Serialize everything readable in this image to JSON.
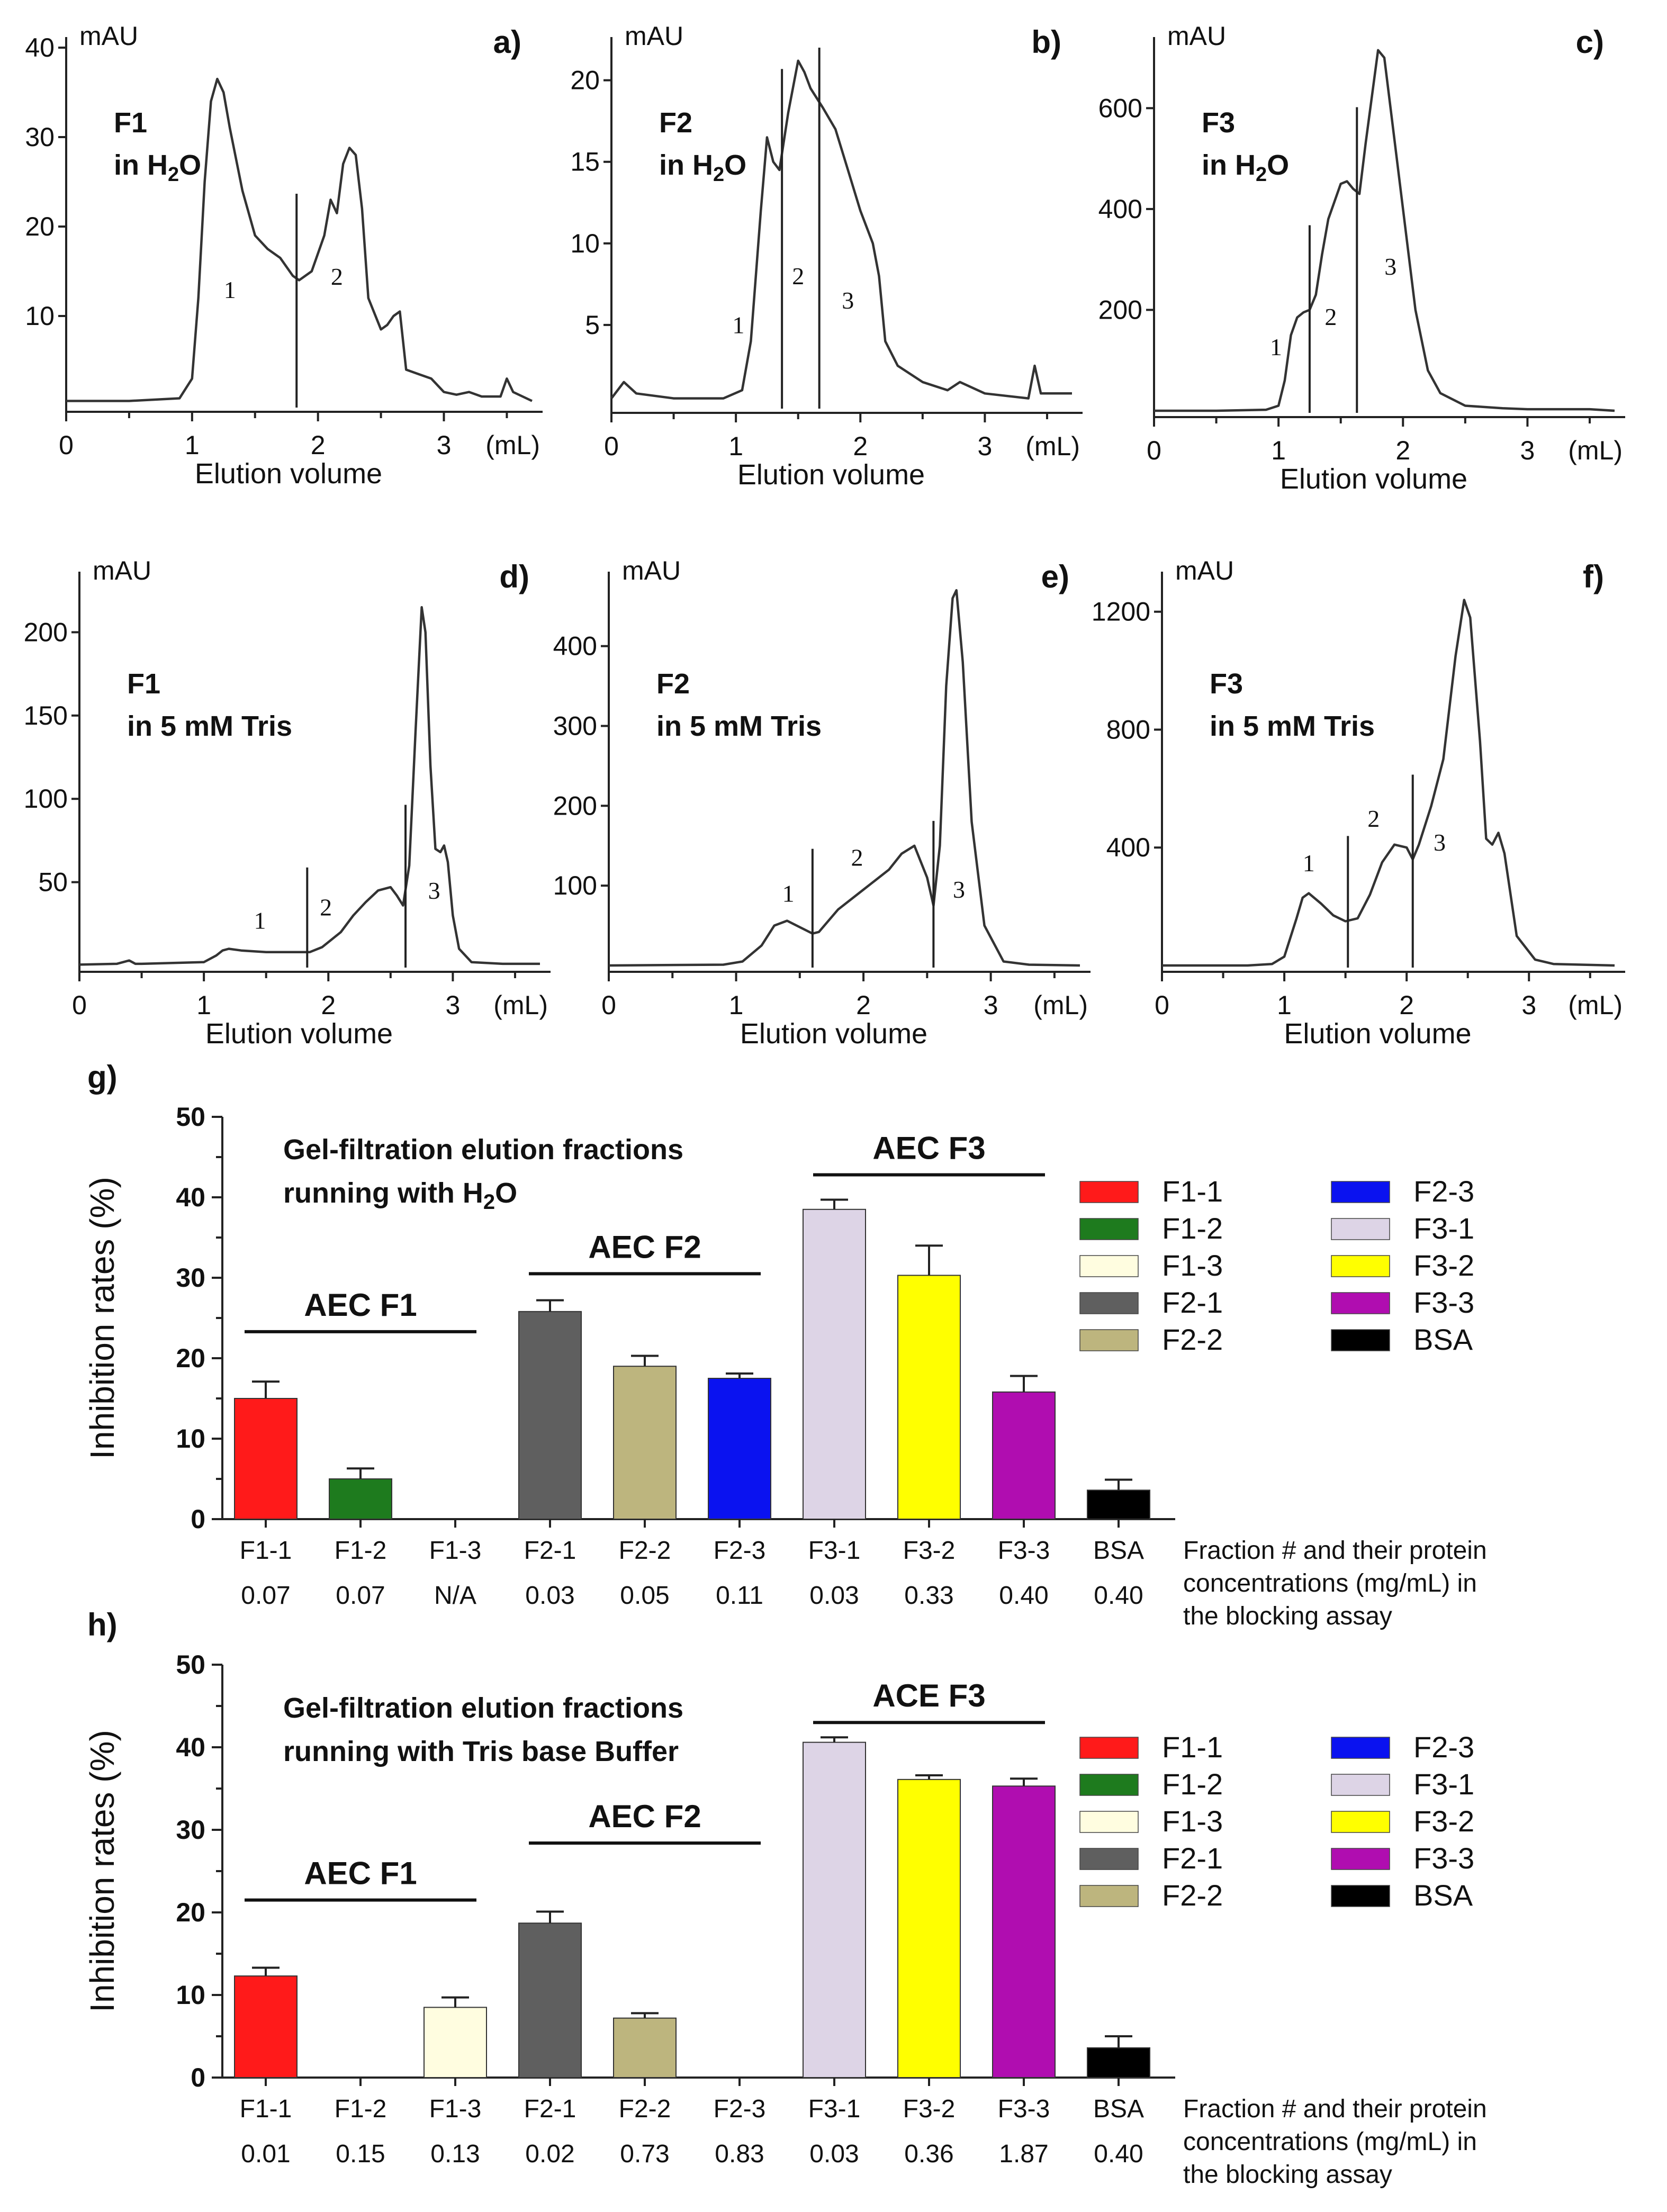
{
  "chart_data": [
    {
      "panel": "a)",
      "type": "line",
      "sample": "F1",
      "solvent": "in H2O",
      "y_unit": "mAU",
      "x_unit": "(mL)",
      "xlabel": "Elution volume",
      "xlim": [
        0,
        3.7
      ],
      "ylim": [
        0,
        40
      ],
      "x_ticks": [
        0,
        1,
        2,
        3
      ],
      "y_ticks": [
        10,
        20,
        30,
        40
      ],
      "dividers": [
        1.83
      ],
      "fractions": [
        {
          "label": "1",
          "x": 1.3,
          "y": 12
        },
        {
          "label": "2",
          "x": 2.15,
          "y": 13.5
        }
      ],
      "x": [
        0,
        0.5,
        0.9,
        1.0,
        1.05,
        1.1,
        1.15,
        1.2,
        1.25,
        1.3,
        1.4,
        1.5,
        1.6,
        1.7,
        1.8,
        1.85,
        1.95,
        2.05,
        2.1,
        2.15,
        2.2,
        2.25,
        2.3,
        2.35,
        2.4,
        2.5,
        2.55,
        2.6,
        2.65,
        2.7,
        2.8,
        2.9,
        3.0,
        3.1,
        3.2,
        3.3,
        3.45,
        3.5,
        3.55,
        3.7
      ],
      "y": [
        0.5,
        0.5,
        0.8,
        3,
        12,
        25,
        34,
        36.5,
        35,
        31,
        24,
        19,
        17.5,
        16.5,
        14.5,
        14,
        15,
        19,
        23,
        21.5,
        27,
        28.8,
        28,
        22,
        12,
        8.5,
        9,
        10,
        10.5,
        4,
        3.5,
        3,
        1.5,
        1.2,
        1.5,
        1,
        1,
        3,
        1.5,
        0.5
      ]
    },
    {
      "panel": "b)",
      "type": "line",
      "sample": "F2",
      "solvent": "in H2O",
      "y_unit": "mAU",
      "x_unit": "(mL)",
      "xlabel": "Elution volume",
      "xlim": [
        0,
        3.7
      ],
      "ylim": [
        0,
        22
      ],
      "x_ticks": [
        0,
        1,
        2,
        3
      ],
      "y_ticks": [
        5,
        10,
        15,
        20
      ],
      "dividers": [
        1.37,
        1.67
      ],
      "fractions": [
        {
          "label": "1",
          "x": 1.02,
          "y": 4.5
        },
        {
          "label": "2",
          "x": 1.5,
          "y": 7.5
        },
        {
          "label": "3",
          "x": 1.9,
          "y": 6
        }
      ],
      "x": [
        0,
        0.1,
        0.2,
        0.5,
        0.9,
        1.05,
        1.12,
        1.2,
        1.25,
        1.3,
        1.35,
        1.42,
        1.5,
        1.55,
        1.6,
        1.7,
        1.8,
        1.9,
        2.0,
        2.1,
        2.15,
        2.2,
        2.3,
        2.5,
        2.7,
        2.8,
        3.0,
        3.35,
        3.4,
        3.45,
        3.7
      ],
      "y": [
        0.5,
        1.5,
        0.8,
        0.5,
        0.5,
        1,
        4,
        12,
        16.5,
        15,
        14.5,
        18,
        21.2,
        20.5,
        19.5,
        18.3,
        17,
        14.5,
        12,
        10,
        8,
        4,
        2.5,
        1.5,
        1,
        1.5,
        0.8,
        0.5,
        2.5,
        0.8,
        0.8
      ]
    },
    {
      "panel": "c)",
      "type": "line",
      "sample": "F3",
      "solvent": "in H2O",
      "y_unit": "mAU",
      "x_unit": "(mL)",
      "xlabel": "Elution volume",
      "xlim": [
        0,
        3.7
      ],
      "ylim": [
        0,
        720
      ],
      "x_ticks": [
        0,
        1,
        2,
        3
      ],
      "y_ticks": [
        200,
        400,
        600
      ],
      "dividers": [
        1.25,
        1.63
      ],
      "fractions": [
        {
          "label": "1",
          "x": 0.98,
          "y": 110
        },
        {
          "label": "2",
          "x": 1.42,
          "y": 170
        },
        {
          "label": "3",
          "x": 1.9,
          "y": 270
        }
      ],
      "x": [
        0,
        0.5,
        0.9,
        1.0,
        1.05,
        1.1,
        1.15,
        1.2,
        1.25,
        1.3,
        1.35,
        1.4,
        1.5,
        1.55,
        1.6,
        1.65,
        1.7,
        1.8,
        1.85,
        1.9,
        2.0,
        2.1,
        2.2,
        2.3,
        2.5,
        2.8,
        3.0,
        3.5,
        3.7
      ],
      "y": [
        0,
        0,
        2,
        10,
        60,
        150,
        185,
        195,
        200,
        230,
        310,
        380,
        450,
        455,
        440,
        430,
        530,
        715,
        700,
        600,
        400,
        200,
        80,
        35,
        10,
        5,
        3,
        3,
        0
      ]
    },
    {
      "panel": "d)",
      "type": "line",
      "sample": "F1",
      "solvent": "in 5 mM Tris",
      "y_unit": "mAU",
      "x_unit": "(mL)",
      "xlabel": "Elution volume",
      "xlim": [
        0,
        3.7
      ],
      "ylim": [
        0,
        230
      ],
      "x_ticks": [
        0,
        1,
        2,
        3
      ],
      "y_ticks": [
        50,
        100,
        150,
        200
      ],
      "dividers": [
        1.83,
        2.62
      ],
      "fractions": [
        {
          "label": "1",
          "x": 1.45,
          "y": 22
        },
        {
          "label": "2",
          "x": 1.98,
          "y": 30
        },
        {
          "label": "3",
          "x": 2.85,
          "y": 40
        }
      ],
      "x": [
        0,
        0.3,
        0.4,
        0.45,
        0.5,
        1.0,
        1.1,
        1.15,
        1.2,
        1.3,
        1.5,
        1.7,
        1.85,
        1.95,
        2.1,
        2.2,
        2.3,
        2.4,
        2.5,
        2.55,
        2.6,
        2.65,
        2.7,
        2.75,
        2.78,
        2.82,
        2.86,
        2.9,
        2.93,
        2.96,
        3.0,
        3.05,
        3.15,
        3.4,
        3.7
      ],
      "y": [
        0.5,
        1,
        3,
        1,
        1,
        2,
        6,
        9,
        10,
        9,
        8,
        8,
        8,
        11,
        20,
        30,
        38,
        45,
        47,
        42,
        36,
        60,
        140,
        215,
        200,
        120,
        70,
        68,
        72,
        62,
        30,
        10,
        2,
        1,
        1
      ]
    },
    {
      "panel": "e)",
      "type": "line",
      "sample": "F2",
      "solvent": "in 5 mM Tris",
      "y_unit": "mAU",
      "x_unit": "(mL)",
      "xlabel": "Elution volume",
      "xlim": [
        0,
        3.7
      ],
      "ylim": [
        0,
        480
      ],
      "x_ticks": [
        0,
        1,
        2,
        3
      ],
      "y_ticks": [
        100,
        200,
        300,
        400
      ],
      "dividers": [
        1.6,
        2.55
      ],
      "fractions": [
        {
          "label": "1",
          "x": 1.41,
          "y": 80
        },
        {
          "label": "2",
          "x": 1.95,
          "y": 125
        },
        {
          "label": "3",
          "x": 2.75,
          "y": 85
        }
      ],
      "x": [
        0,
        0.9,
        1.05,
        1.2,
        1.3,
        1.4,
        1.5,
        1.6,
        1.65,
        1.8,
        2.0,
        2.2,
        2.3,
        2.4,
        2.5,
        2.55,
        2.6,
        2.65,
        2.7,
        2.73,
        2.78,
        2.85,
        2.95,
        3.1,
        3.3,
        3.7
      ],
      "y": [
        0,
        1,
        5,
        25,
        50,
        56,
        48,
        40,
        42,
        70,
        95,
        120,
        140,
        150,
        110,
        75,
        150,
        350,
        460,
        470,
        380,
        180,
        50,
        5,
        1,
        0
      ]
    },
    {
      "panel": "f)",
      "type": "line",
      "sample": "F3",
      "solvent": "in 5 mM Tris",
      "y_unit": "mAU",
      "x_unit": "(mL)",
      "xlabel": "Elution volume",
      "xlim": [
        0,
        3.7
      ],
      "ylim": [
        0,
        1300
      ],
      "x_ticks": [
        0,
        1,
        2,
        3
      ],
      "y_ticks": [
        400,
        800,
        1200
      ],
      "dividers": [
        1.52,
        2.05
      ],
      "fractions": [
        {
          "label": "1",
          "x": 1.2,
          "y": 320
        },
        {
          "label": "2",
          "x": 1.73,
          "y": 470
        },
        {
          "label": "3",
          "x": 2.27,
          "y": 390
        }
      ],
      "x": [
        0,
        0.7,
        0.9,
        1.0,
        1.1,
        1.15,
        1.2,
        1.3,
        1.4,
        1.5,
        1.6,
        1.7,
        1.8,
        1.9,
        2.0,
        2.05,
        2.1,
        2.2,
        2.3,
        2.4,
        2.47,
        2.52,
        2.6,
        2.65,
        2.7,
        2.75,
        2.8,
        2.9,
        3.05,
        3.2,
        3.7
      ],
      "y": [
        0,
        0,
        5,
        30,
        160,
        230,
        245,
        210,
        170,
        150,
        160,
        240,
        350,
        410,
        400,
        360,
        410,
        540,
        700,
        1050,
        1240,
        1180,
        760,
        430,
        410,
        450,
        380,
        100,
        20,
        5,
        0
      ]
    },
    {
      "panel": "g)",
      "type": "bar",
      "title": "Gel-filtration elution fractions running with H2O",
      "ylabel": "Inhibition rates (%)",
      "ylim": [
        0,
        50
      ],
      "y_ticks": [
        0,
        10,
        20,
        30,
        40,
        50
      ],
      "categories": [
        "F1-1",
        "F1-2",
        "F1-3",
        "F2-1",
        "F2-2",
        "F2-3",
        "F3-1",
        "F3-2",
        "F3-3",
        "BSA"
      ],
      "concentrations": [
        "0.07",
        "0.07",
        "N/A",
        "0.03",
        "0.05",
        "0.11",
        "0.03",
        "0.33",
        "0.40",
        "0.40"
      ],
      "values": [
        15.0,
        5.0,
        0,
        25.8,
        19.0,
        17.5,
        38.5,
        30.3,
        15.8,
        3.6
      ],
      "errors": [
        2.1,
        1.3,
        0,
        1.4,
        1.3,
        0.6,
        1.2,
        3.7,
        2.0,
        1.3
      ],
      "colors": [
        "#ff1a1a",
        "#1e7b1e",
        "#fffde0",
        "#5f5f5f",
        "#bdb57e",
        "#0a12f0",
        "#ddd4e6",
        "#ffff00",
        "#b00db0",
        "#000000"
      ],
      "groups": [
        {
          "label": "AEC F1",
          "from": 0,
          "to": 2,
          "y": 23.3
        },
        {
          "label": "AEC F2",
          "from": 3,
          "to": 5,
          "y": 30.5
        },
        {
          "label": "AEC F3",
          "from": 6,
          "to": 8,
          "y": 42.8
        }
      ],
      "note": [
        "Fraction # and their protein",
        "concentrations (mg/mL) in",
        "the blocking assay"
      ]
    },
    {
      "panel": "h)",
      "type": "bar",
      "title": "Gel-filtration elution fractions running with Tris base Buffer",
      "ylabel": "Inhibition rates (%)",
      "ylim": [
        0,
        50
      ],
      "y_ticks": [
        0,
        10,
        20,
        30,
        40,
        50
      ],
      "categories": [
        "F1-1",
        "F1-2",
        "F1-3",
        "F2-1",
        "F2-2",
        "F2-3",
        "F3-1",
        "F3-2",
        "F3-3",
        "BSA"
      ],
      "concentrations": [
        "0.01",
        "0.15",
        "0.13",
        "0.02",
        "0.73",
        "0.83",
        "0.03",
        "0.36",
        "1.87",
        "0.40"
      ],
      "values": [
        12.3,
        0,
        8.5,
        18.7,
        7.2,
        0,
        40.6,
        36.1,
        35.3,
        3.6
      ],
      "errors": [
        1.0,
        0,
        1.2,
        1.4,
        0.6,
        0,
        0.6,
        0.5,
        0.9,
        1.4
      ],
      "colors": [
        "#ff1a1a",
        "#1e7b1e",
        "#fffde0",
        "#5f5f5f",
        "#bdb57e",
        "#0a12f0",
        "#ddd4e6",
        "#ffff00",
        "#b00db0",
        "#000000"
      ],
      "groups": [
        {
          "label": "AEC F1",
          "from": 0,
          "to": 2,
          "y": 21.5
        },
        {
          "label": "AEC F2",
          "from": 3,
          "to": 5,
          "y": 28.4
        },
        {
          "label": "ACE F3",
          "from": 6,
          "to": 8,
          "y": 43.0
        }
      ],
      "note": [
        "Fraction # and their protein",
        "concentrations (mg/mL) in",
        "the blocking assay"
      ]
    }
  ],
  "legend_order": [
    "F1-1",
    "F1-2",
    "F1-3",
    "F2-1",
    "F2-2",
    "F2-3",
    "F3-1",
    "F3-2",
    "F3-3",
    "BSA"
  ]
}
